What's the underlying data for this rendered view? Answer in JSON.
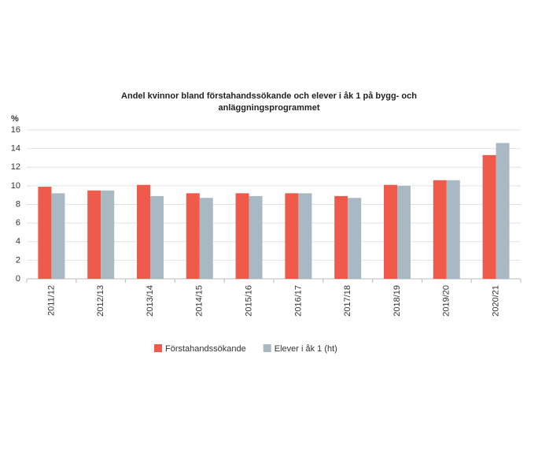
{
  "chart_data": {
    "type": "bar",
    "title": "Andel kvinnor bland förstahandssökande och elever i åk 1 på bygg- och anläggningsprogrammet",
    "y_label": "%",
    "categories": [
      "2011/12",
      "2012/13",
      "2013/14",
      "2014/15",
      "2015/16",
      "2016/17",
      "2017/18",
      "2018/19",
      "2019/20",
      "2020/21"
    ],
    "series": [
      {
        "name": "Förstahandssökande",
        "color": "#f05a4a",
        "values": [
          9.9,
          9.5,
          10.1,
          9.2,
          9.2,
          9.2,
          8.9,
          10.1,
          10.6,
          13.3
        ]
      },
      {
        "name": "Elever i åk 1 (ht)",
        "color": "#a9b9c4",
        "values": [
          9.2,
          9.5,
          8.9,
          8.7,
          8.9,
          9.2,
          8.7,
          10.0,
          10.6,
          14.6
        ]
      }
    ],
    "ylim": [
      0,
      16
    ],
    "yticks": [
      0,
      2,
      4,
      6,
      8,
      10,
      12,
      14,
      16
    ],
    "grid": true
  }
}
